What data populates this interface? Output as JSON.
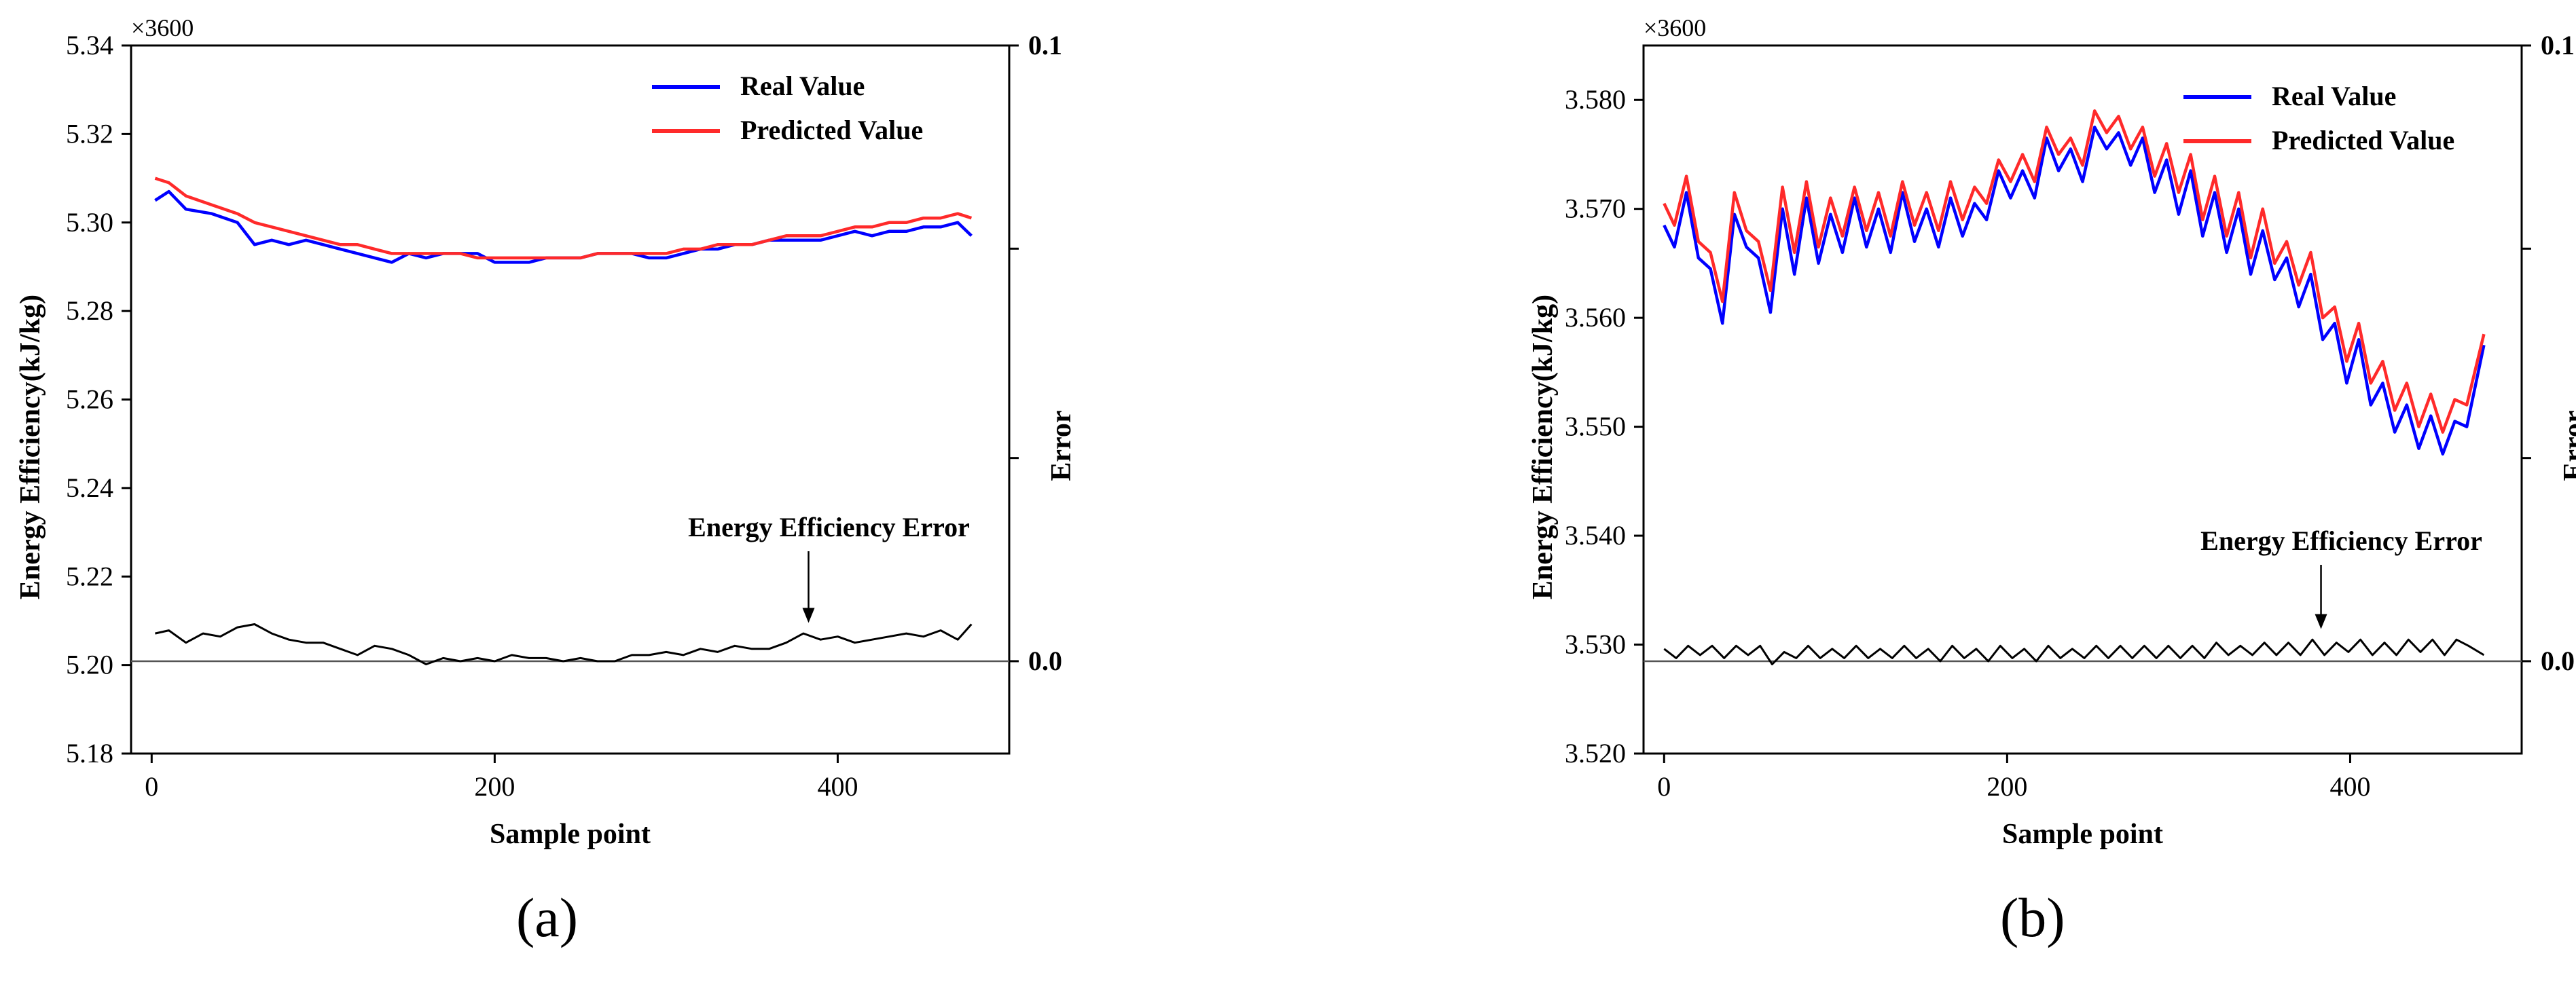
{
  "chart_data": [
    {
      "type": "line",
      "panel_label": "(a)",
      "multiplier_label": "×3600",
      "xlabel": "Sample point",
      "ylabel": "Energy Efficiency(kJ/kg)",
      "y2label": "Error",
      "xlim": [
        -12,
        500
      ],
      "ylim": [
        5.18,
        5.34
      ],
      "y2lim": [
        -0.015,
        0.1
      ],
      "xticks": [
        0,
        200,
        400
      ],
      "yticks": [
        5.18,
        5.2,
        5.22,
        5.24,
        5.26,
        5.28,
        5.3,
        5.32,
        5.34
      ],
      "y2ticks": [
        0.0,
        0.1
      ],
      "y2_minor_ticks": [
        0.033,
        0.067
      ],
      "error_baseline": 0.0,
      "legend": [
        "Real Value",
        "Predicted Value"
      ],
      "annotation": {
        "text": "Energy Efficiency Error",
        "x": 383,
        "y": 0.006
      },
      "series": [
        {
          "name": "Real Value",
          "color": "#0000ff",
          "axis": "left",
          "x": [
            2,
            10,
            20,
            35,
            50,
            60,
            70,
            80,
            90,
            100,
            110,
            120,
            130,
            140,
            150,
            160,
            170,
            180,
            190,
            200,
            210,
            220,
            230,
            240,
            250,
            260,
            270,
            280,
            290,
            300,
            310,
            320,
            330,
            340,
            350,
            360,
            370,
            380,
            390,
            400,
            410,
            420,
            430,
            440,
            450,
            460,
            470,
            478
          ],
          "values": [
            5.305,
            5.307,
            5.303,
            5.302,
            5.3,
            5.295,
            5.296,
            5.295,
            5.296,
            5.295,
            5.294,
            5.293,
            5.292,
            5.291,
            5.293,
            5.292,
            5.293,
            5.293,
            5.293,
            5.291,
            5.291,
            5.291,
            5.292,
            5.292,
            5.292,
            5.293,
            5.293,
            5.293,
            5.292,
            5.292,
            5.293,
            5.294,
            5.294,
            5.295,
            5.295,
            5.296,
            5.296,
            5.296,
            5.296,
            5.297,
            5.298,
            5.297,
            5.298,
            5.298,
            5.299,
            5.299,
            5.3,
            5.297
          ]
        },
        {
          "name": "Predicted Value",
          "color": "#ff2a2a",
          "axis": "left",
          "x": [
            2,
            10,
            20,
            35,
            50,
            60,
            70,
            80,
            90,
            100,
            110,
            120,
            130,
            140,
            150,
            160,
            170,
            180,
            190,
            200,
            210,
            220,
            230,
            240,
            250,
            260,
            270,
            280,
            290,
            300,
            310,
            320,
            330,
            340,
            350,
            360,
            370,
            380,
            390,
            400,
            410,
            420,
            430,
            440,
            450,
            460,
            470,
            478
          ],
          "values": [
            5.31,
            5.309,
            5.306,
            5.304,
            5.302,
            5.3,
            5.299,
            5.298,
            5.297,
            5.296,
            5.295,
            5.295,
            5.294,
            5.293,
            5.293,
            5.293,
            5.293,
            5.293,
            5.292,
            5.292,
            5.292,
            5.292,
            5.292,
            5.292,
            5.292,
            5.293,
            5.293,
            5.293,
            5.293,
            5.293,
            5.294,
            5.294,
            5.295,
            5.295,
            5.295,
            5.296,
            5.297,
            5.297,
            5.297,
            5.298,
            5.299,
            5.299,
            5.3,
            5.3,
            5.301,
            5.301,
            5.302,
            5.301
          ]
        },
        {
          "name": "Energy Efficiency Error",
          "color": "#000000",
          "axis": "right",
          "x": [
            2,
            10,
            20,
            30,
            40,
            50,
            60,
            70,
            80,
            90,
            100,
            110,
            120,
            130,
            140,
            150,
            160,
            170,
            180,
            190,
            200,
            210,
            220,
            230,
            240,
            250,
            260,
            270,
            280,
            290,
            300,
            310,
            320,
            330,
            340,
            350,
            360,
            370,
            380,
            390,
            400,
            410,
            420,
            430,
            440,
            450,
            460,
            470,
            478
          ],
          "values": [
            0.0045,
            0.005,
            0.003,
            0.0045,
            0.004,
            0.0055,
            0.006,
            0.0045,
            0.0035,
            0.003,
            0.003,
            0.002,
            0.001,
            0.0025,
            0.002,
            0.001,
            -0.0005,
            0.0005,
            0.0,
            0.0005,
            0.0,
            0.001,
            0.0005,
            0.0005,
            0.0,
            0.0005,
            0.0,
            0.0,
            0.001,
            0.001,
            0.0015,
            0.001,
            0.002,
            0.0015,
            0.0025,
            0.002,
            0.002,
            0.003,
            0.0045,
            0.0035,
            0.004,
            0.003,
            0.0035,
            0.004,
            0.0045,
            0.004,
            0.005,
            0.0035,
            0.006
          ]
        }
      ]
    },
    {
      "type": "line",
      "panel_label": "(b)",
      "multiplier_label": "×3600",
      "xlabel": "Sample point",
      "ylabel": "Energy Efficiency(kJ/kg)",
      "y2label": "Error",
      "xlim": [
        -12,
        500
      ],
      "ylim": [
        3.52,
        3.585
      ],
      "y2lim": [
        -0.015,
        0.1
      ],
      "xticks": [
        0,
        200,
        400
      ],
      "yticks": [
        3.52,
        3.53,
        3.54,
        3.55,
        3.56,
        3.57,
        3.58
      ],
      "y2ticks": [
        0.0,
        0.1
      ],
      "y2_minor_ticks": [
        0.033,
        0.067
      ],
      "error_baseline": 0.0,
      "legend": [
        "Real Value",
        "Predicted Value"
      ],
      "annotation": {
        "text": "Energy Efficiency Error",
        "x": 383,
        "y": 0.005
      },
      "series": [
        {
          "name": "Real Value",
          "color": "#0000ff",
          "axis": "left",
          "x": [
            0,
            6,
            13,
            20,
            27,
            34,
            41,
            48,
            55,
            62,
            69,
            76,
            83,
            90,
            97,
            104,
            111,
            118,
            125,
            132,
            139,
            146,
            153,
            160,
            167,
            174,
            181,
            188,
            195,
            202,
            209,
            216,
            223,
            230,
            237,
            244,
            251,
            258,
            265,
            272,
            279,
            286,
            293,
            300,
            307,
            314,
            321,
            328,
            335,
            342,
            349,
            356,
            363,
            370,
            377,
            384,
            391,
            398,
            405,
            412,
            419,
            426,
            433,
            440,
            447,
            454,
            461,
            468,
            478
          ],
          "values": [
            3.5685,
            3.5665,
            3.5715,
            3.5655,
            3.5645,
            3.5595,
            3.5695,
            3.5665,
            3.5655,
            3.5605,
            3.57,
            3.564,
            3.571,
            3.565,
            3.5695,
            3.566,
            3.571,
            3.5665,
            3.57,
            3.566,
            3.5715,
            3.567,
            3.57,
            3.5665,
            3.571,
            3.5675,
            3.5705,
            3.569,
            3.5735,
            3.571,
            3.5735,
            3.571,
            3.5765,
            3.5735,
            3.5755,
            3.5725,
            3.5775,
            3.5755,
            3.577,
            3.574,
            3.5765,
            3.5715,
            3.5745,
            3.5695,
            3.5735,
            3.5675,
            3.5715,
            3.566,
            3.57,
            3.564,
            3.568,
            3.5635,
            3.5655,
            3.561,
            3.564,
            3.558,
            3.5595,
            3.554,
            3.558,
            3.552,
            3.554,
            3.5495,
            3.552,
            3.548,
            3.551,
            3.5475,
            3.5505,
            3.55,
            3.5575
          ]
        },
        {
          "name": "Predicted Value",
          "color": "#ff2a2a",
          "axis": "left",
          "x": [
            0,
            6,
            13,
            20,
            27,
            34,
            41,
            48,
            55,
            62,
            69,
            76,
            83,
            90,
            97,
            104,
            111,
            118,
            125,
            132,
            139,
            146,
            153,
            160,
            167,
            174,
            181,
            188,
            195,
            202,
            209,
            216,
            223,
            230,
            237,
            244,
            251,
            258,
            265,
            272,
            279,
            286,
            293,
            300,
            307,
            314,
            321,
            328,
            335,
            342,
            349,
            356,
            363,
            370,
            377,
            384,
            391,
            398,
            405,
            412,
            419,
            426,
            433,
            440,
            447,
            454,
            461,
            468,
            478
          ],
          "values": [
            3.5705,
            3.5685,
            3.573,
            3.567,
            3.566,
            3.5615,
            3.5715,
            3.568,
            3.567,
            3.5625,
            3.572,
            3.566,
            3.5725,
            3.5665,
            3.571,
            3.5675,
            3.572,
            3.568,
            3.5715,
            3.5675,
            3.5725,
            3.5685,
            3.5715,
            3.568,
            3.5725,
            3.569,
            3.572,
            3.5705,
            3.5745,
            3.5725,
            3.575,
            3.5725,
            3.5775,
            3.575,
            3.5765,
            3.574,
            3.579,
            3.577,
            3.5785,
            3.5755,
            3.5775,
            3.573,
            3.576,
            3.5715,
            3.575,
            3.569,
            3.573,
            3.5675,
            3.5715,
            3.5655,
            3.57,
            3.565,
            3.567,
            3.563,
            3.566,
            3.56,
            3.561,
            3.556,
            3.5595,
            3.554,
            3.556,
            3.5515,
            3.554,
            3.55,
            3.553,
            3.5495,
            3.5525,
            3.552,
            3.5585
          ]
        },
        {
          "name": "Energy Efficiency Error",
          "color": "#000000",
          "axis": "right",
          "x": [
            0,
            7,
            14,
            21,
            28,
            35,
            42,
            49,
            56,
            63,
            70,
            77,
            84,
            91,
            98,
            105,
            112,
            119,
            126,
            133,
            140,
            147,
            154,
            161,
            168,
            175,
            182,
            189,
            196,
            203,
            210,
            217,
            224,
            231,
            238,
            245,
            252,
            259,
            266,
            273,
            280,
            287,
            294,
            301,
            308,
            315,
            322,
            329,
            336,
            343,
            350,
            357,
            364,
            371,
            378,
            385,
            392,
            399,
            406,
            413,
            420,
            427,
            434,
            441,
            448,
            455,
            462,
            469,
            478
          ],
          "values": [
            0.002,
            0.0005,
            0.0025,
            0.001,
            0.0025,
            0.0005,
            0.0025,
            0.001,
            0.0025,
            -0.0005,
            0.0015,
            0.0005,
            0.0025,
            0.0005,
            0.002,
            0.0005,
            0.0025,
            0.0005,
            0.002,
            0.0005,
            0.0025,
            0.0005,
            0.002,
            0.0,
            0.0025,
            0.0005,
            0.002,
            0.0,
            0.0025,
            0.0005,
            0.002,
            0.0,
            0.0025,
            0.0005,
            0.002,
            0.0005,
            0.0025,
            0.0005,
            0.0025,
            0.0005,
            0.0025,
            0.0005,
            0.0025,
            0.0005,
            0.0025,
            0.0005,
            0.003,
            0.001,
            0.0025,
            0.001,
            0.003,
            0.001,
            0.003,
            0.001,
            0.0035,
            0.001,
            0.003,
            0.0015,
            0.0035,
            0.001,
            0.003,
            0.001,
            0.0035,
            0.0015,
            0.0035,
            0.001,
            0.0035,
            0.0025,
            0.001
          ]
        }
      ]
    }
  ]
}
